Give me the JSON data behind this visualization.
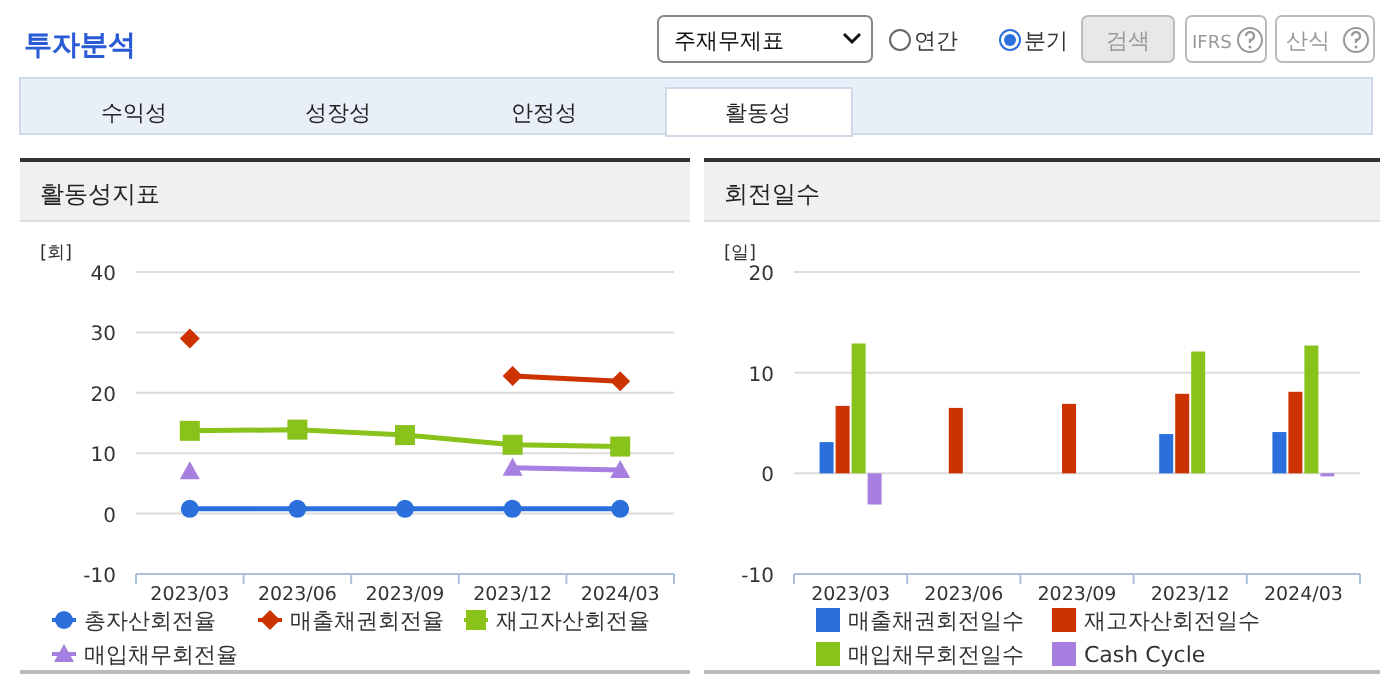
{
  "chart_data": [
    {
      "type": "line",
      "title": "활동성지표",
      "ylabel": "[회]",
      "categories": [
        "2023/03",
        "2023/06",
        "2023/09",
        "2023/12",
        "2024/03"
      ],
      "ylim": [
        -10,
        40
      ],
      "yticks": [
        -10,
        0,
        10,
        20,
        30,
        40
      ],
      "grid": "y",
      "legend": "bottom",
      "annotations": [
        "투자분석",
        "주재무제표",
        "연간",
        "분기",
        "검색",
        "IFRS",
        "산식",
        "수익성",
        "성장성",
        "안정성",
        "활동성"
      ],
      "series": [
        {
          "name": "총자산회전율",
          "color": "#2a6fdb",
          "marker": "circle",
          "values": [
            0.8,
            0.8,
            0.8,
            0.8,
            0.8
          ]
        },
        {
          "name": "매출채권회전율",
          "color": "#cc3300",
          "marker": "diamond",
          "values": [
            29,
            null,
            null,
            22.8,
            21.9
          ]
        },
        {
          "name": "재고자산회전율",
          "color": "#88c21a",
          "marker": "square",
          "values": [
            13.7,
            13.9,
            13.0,
            11.4,
            11.1
          ]
        },
        {
          "name": "매입채무회전율",
          "color": "#a77fe0",
          "marker": "triangle",
          "values": [
            7.0,
            null,
            null,
            7.6,
            7.2
          ]
        }
      ]
    },
    {
      "type": "bar",
      "title": "회전일수",
      "ylabel": "[일]",
      "categories": [
        "2023/03",
        "2023/06",
        "2023/09",
        "2023/12",
        "2024/03"
      ],
      "ylim": [
        -10,
        20
      ],
      "yticks": [
        -10,
        0,
        10,
        20
      ],
      "grid": "y",
      "legend": "bottom",
      "series": [
        {
          "name": "매출채권회전일수",
          "color": "#2a6fdb",
          "values": [
            3.1,
            null,
            null,
            3.9,
            4.1
          ]
        },
        {
          "name": "재고자산회전일수",
          "color": "#cc3300",
          "values": [
            6.7,
            6.5,
            6.9,
            7.9,
            8.1
          ]
        },
        {
          "name": "매입채무회전일수",
          "color": "#88c21a",
          "values": [
            12.9,
            null,
            null,
            12.1,
            12.7
          ]
        },
        {
          "name": "Cash Cycle",
          "color": "#a77fe0",
          "values": [
            -3.1,
            null,
            null,
            null,
            -0.3
          ]
        }
      ]
    }
  ]
}
